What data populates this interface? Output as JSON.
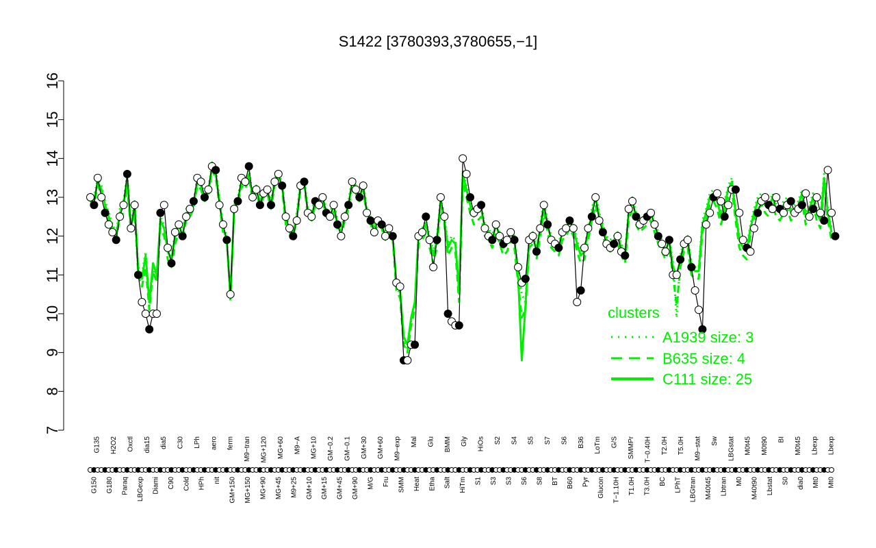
{
  "chart_data": {
    "type": "line",
    "title": "S1422 [3780393,3780655,−1]",
    "ylim": [
      7,
      16
    ],
    "yticks": [
      7,
      8,
      9,
      10,
      11,
      12,
      13,
      14,
      15,
      16
    ],
    "legend": {
      "title": "clusters",
      "position": "right",
      "entries": [
        "A1939 size: 3",
        "B635 size: 4",
        "C111 size: 25"
      ]
    },
    "x_labels_top": [
      "G135",
      "H2O2",
      "Oxctl",
      "dia15",
      "dia5",
      "C30",
      "LPh",
      "aero",
      "ferm",
      "M9−tran",
      "MG+120",
      "MG+60",
      "M9−A",
      "MG+10",
      "GM−0.2",
      "GM−0.1",
      "GM+30",
      "GM+60",
      "M9−exp",
      "Mal",
      "Glu",
      "BMM",
      "Gly",
      "HiOs",
      "S2",
      "S4",
      "S5",
      "S7",
      "S6",
      "B36",
      "LoTm",
      "G/S",
      "SMMPr",
      "T−0.40H",
      "T2.0H",
      "T5.0H",
      "M9−stat",
      "Sw",
      "LBGstat",
      "M0t45",
      "M0t90",
      "BI",
      "M0t45",
      "Lbexp",
      "Lbexp"
    ],
    "x_labels_bottom": [
      "G150",
      "G180",
      "Paraq",
      "LBGexp",
      "Diami",
      "C90",
      "Cold",
      "HPh",
      "nit",
      "GM+150",
      "MG+150",
      "MG+90",
      "MG+45",
      "M9+25",
      "GM+10",
      "GM+15",
      "GM+45",
      "GM+90",
      "M/G",
      "Fru",
      "SMM",
      "Heat",
      "Etha",
      "Salt",
      "HiTm",
      "S1",
      "S3",
      "S3",
      "S6",
      "S8",
      "BT",
      "B60",
      "Pyr",
      "Glucon",
      "T−1.10H",
      "T1.0H",
      "T3.0H",
      "BC",
      "LPhT",
      "LBGtran",
      "M40t45",
      "Lbtran",
      "M0",
      "M40t90",
      "Lbstat",
      "S0",
      "dia0",
      "Mt0",
      "Mt0"
    ],
    "series": [
      {
        "name": "C111 size: 25",
        "style": "solid",
        "values": [
          13.0,
          12.9,
          13.4,
          13.2,
          12.8,
          12.5,
          12.2,
          12.0,
          12.6,
          12.8,
          13.5,
          12.2,
          12.8,
          11.1,
          10.9,
          11.5,
          10.3,
          11.3,
          11.0,
          12.4,
          12.2,
          11.6,
          11.4,
          12.0,
          12.3,
          12.0,
          12.6,
          12.6,
          12.8,
          13.4,
          13.3,
          13.0,
          13.1,
          13.8,
          13.6,
          12.9,
          12.2,
          11.9,
          10.4,
          12.7,
          12.9,
          13.4,
          13.3,
          13.6,
          13.0,
          13.2,
          12.9,
          13.1,
          13.2,
          12.8,
          13.4,
          13.5,
          13.3,
          12.4,
          12.2,
          12.1,
          12.5,
          13.3,
          13.4,
          12.6,
          12.5,
          12.9,
          12.8,
          13.0,
          12.6,
          12.5,
          12.8,
          12.3,
          12.1,
          12.5,
          12.8,
          13.4,
          13.2,
          13.0,
          13.3,
          12.6,
          12.4,
          12.2,
          12.4,
          12.3,
          12.0,
          12.1,
          12.0,
          10.8,
          10.6,
          9.4,
          9.2,
          9.9,
          10.3,
          12.0,
          12.1,
          12.3,
          11.9,
          11.5,
          11.9,
          12.9,
          12.4,
          11.7,
          11.9,
          11.8,
          10.6,
          13.6,
          13.2,
          12.8,
          12.5,
          12.6,
          12.7,
          12.2,
          12.1,
          11.9,
          12.3,
          12.0,
          11.7,
          11.8,
          12.1,
          11.9,
          11.0,
          8.8,
          10.2,
          11.9,
          12.0,
          11.6,
          12.2,
          12.8,
          12.3,
          11.9,
          11.8,
          11.7,
          12.1,
          12.2,
          12.4,
          12.2,
          11.8,
          11.5,
          11.6,
          12.1,
          12.6,
          13.0,
          12.5,
          12.2,
          11.9,
          11.8,
          11.9,
          12.0,
          11.7,
          11.5,
          12.6,
          12.9,
          12.5,
          12.3,
          12.4,
          12.5,
          12.6,
          12.3,
          12.0,
          11.8,
          11.6,
          11.9,
          11.2,
          11.0,
          11.4,
          11.8,
          11.9,
          11.2,
          11.1,
          11.1,
          12.3,
          12.6,
          13.0,
          13.1,
          12.9,
          12.5,
          12.8,
          13.2,
          13.4,
          12.6,
          11.9,
          11.7,
          11.6,
          12.2,
          12.6,
          12.9,
          13.0,
          12.8,
          12.7,
          13.0,
          12.7,
          12.6,
          12.8,
          12.9,
          12.6,
          12.7,
          12.8,
          13.1,
          12.5,
          12.7,
          13.0,
          12.6,
          12.4,
          13.5,
          12.6,
          12.1
        ]
      },
      {
        "name": "B635 size: 4",
        "style": "dashed",
        "values": [
          12.9,
          12.8,
          13.3,
          13.1,
          12.7,
          12.3,
          12.0,
          11.9,
          12.5,
          12.6,
          13.3,
          12.1,
          12.6,
          11.0,
          10.7,
          11.2,
          10.1,
          11.1,
          10.8,
          12.2,
          12.0,
          11.4,
          11.2,
          11.8,
          12.1,
          11.9,
          12.4,
          12.5,
          12.7,
          13.3,
          13.2,
          12.9,
          13.0,
          13.7,
          13.5,
          12.8,
          12.1,
          11.8,
          10.5,
          12.6,
          12.8,
          13.3,
          13.2,
          13.5,
          12.9,
          13.1,
          12.8,
          13.0,
          13.1,
          12.7,
          13.3,
          13.4,
          13.2,
          12.3,
          12.1,
          12.0,
          12.4,
          13.2,
          13.3,
          12.5,
          12.4,
          12.8,
          12.7,
          12.9,
          12.5,
          12.4,
          12.7,
          12.2,
          12.0,
          12.4,
          12.7,
          13.3,
          13.1,
          12.9,
          13.2,
          12.5,
          12.3,
          12.1,
          12.3,
          12.2,
          11.9,
          12.0,
          11.9,
          10.6,
          10.4,
          9.2,
          9.0,
          9.7,
          10.1,
          11.8,
          11.9,
          12.1,
          11.7,
          11.3,
          11.7,
          12.8,
          12.3,
          11.5,
          11.7,
          11.6,
          10.3,
          13.4,
          13.0,
          12.6,
          12.3,
          12.4,
          12.5,
          12.0,
          11.9,
          11.7,
          12.1,
          11.8,
          11.5,
          11.6,
          11.9,
          11.7,
          10.8,
          9.9,
          10.1,
          11.7,
          11.8,
          11.4,
          12.0,
          12.6,
          12.1,
          11.7,
          11.6,
          11.5,
          11.9,
          12.0,
          12.2,
          12.0,
          11.6,
          11.3,
          11.4,
          11.9,
          12.4,
          12.8,
          12.3,
          12.0,
          11.7,
          11.6,
          11.7,
          11.8,
          11.5,
          11.3,
          12.4,
          12.7,
          12.3,
          12.1,
          12.2,
          12.3,
          12.4,
          12.1,
          11.8,
          11.6,
          11.4,
          11.7,
          11.0,
          10.2,
          11.2,
          11.6,
          11.7,
          11.0,
          10.9,
          10.9,
          12.1,
          12.4,
          12.8,
          12.9,
          12.7,
          12.3,
          12.6,
          13.0,
          13.2,
          12.4,
          11.7,
          11.5,
          11.4,
          12.0,
          12.4,
          12.7,
          12.8,
          12.6,
          12.5,
          12.8,
          12.5,
          12.4,
          12.6,
          12.7,
          12.4,
          12.5,
          12.6,
          12.9,
          12.3,
          12.5,
          12.8,
          12.4,
          12.2,
          13.3,
          12.4,
          11.9
        ]
      },
      {
        "name": "A1939 size: 3",
        "style": "dotted",
        "values": [
          13.1,
          13.0,
          13.5,
          13.3,
          12.9,
          12.6,
          12.3,
          12.1,
          12.7,
          12.9,
          13.6,
          12.3,
          12.9,
          11.2,
          11.0,
          11.6,
          10.2,
          11.2,
          10.9,
          12.5,
          12.3,
          11.7,
          11.5,
          12.1,
          12.4,
          12.1,
          12.7,
          12.7,
          12.9,
          13.5,
          13.4,
          13.1,
          13.2,
          13.9,
          13.7,
          13.0,
          12.3,
          12.0,
          10.3,
          12.8,
          13.0,
          13.5,
          13.4,
          13.7,
          13.1,
          13.3,
          13.0,
          13.2,
          13.3,
          12.9,
          13.5,
          13.6,
          13.4,
          12.5,
          12.3,
          12.2,
          12.6,
          13.4,
          13.5,
          12.7,
          12.6,
          13.0,
          12.9,
          13.1,
          12.7,
          12.6,
          12.9,
          12.4,
          12.2,
          12.6,
          12.9,
          13.5,
          13.3,
          13.1,
          13.4,
          12.7,
          12.5,
          12.3,
          12.5,
          12.4,
          12.1,
          12.2,
          12.1,
          10.7,
          10.5,
          9.3,
          9.1,
          9.8,
          10.2,
          12.1,
          12.2,
          12.4,
          12.0,
          11.6,
          12.0,
          13.0,
          12.5,
          11.8,
          12.0,
          11.9,
          10.5,
          13.7,
          13.3,
          12.9,
          12.6,
          12.7,
          12.8,
          12.3,
          12.2,
          12.0,
          12.4,
          12.1,
          11.8,
          11.9,
          12.2,
          12.0,
          11.1,
          10.5,
          10.3,
          12.0,
          12.1,
          11.7,
          12.3,
          12.9,
          12.4,
          12.0,
          11.9,
          11.8,
          12.2,
          12.3,
          12.5,
          12.3,
          11.9,
          11.6,
          11.7,
          12.2,
          12.7,
          13.1,
          12.6,
          12.3,
          12.0,
          11.9,
          12.0,
          12.1,
          11.8,
          11.6,
          12.7,
          13.0,
          12.6,
          12.4,
          12.5,
          12.6,
          12.7,
          12.4,
          12.1,
          11.9,
          11.7,
          12.0,
          11.3,
          9.9,
          11.5,
          11.9,
          12.0,
          11.3,
          11.2,
          11.2,
          12.4,
          12.7,
          13.1,
          13.2,
          13.0,
          12.6,
          12.9,
          13.3,
          13.5,
          12.7,
          12.0,
          11.8,
          11.7,
          12.3,
          12.7,
          13.0,
          13.1,
          12.9,
          12.8,
          13.1,
          12.8,
          12.7,
          12.9,
          13.0,
          12.7,
          12.8,
          12.9,
          13.2,
          12.6,
          12.8,
          13.1,
          12.7,
          12.5,
          13.6,
          12.7,
          12.2
        ]
      },
      {
        "name": "selected",
        "style": "solid-black",
        "values": [
          13.0,
          12.8,
          13.5,
          13.0,
          12.6,
          12.3,
          12.1,
          11.9,
          12.5,
          12.8,
          13.6,
          12.2,
          12.8,
          11.0,
          10.3,
          10.0,
          9.6,
          10.0,
          10.0,
          12.6,
          12.8,
          11.7,
          11.3,
          12.1,
          12.3,
          12.0,
          12.5,
          12.7,
          12.9,
          13.5,
          13.4,
          13.0,
          13.2,
          13.8,
          13.7,
          12.8,
          12.3,
          11.9,
          10.5,
          12.7,
          12.9,
          13.5,
          13.4,
          13.8,
          13.0,
          13.2,
          12.8,
          13.1,
          13.2,
          12.8,
          13.4,
          13.6,
          13.3,
          12.5,
          12.2,
          12.0,
          12.4,
          13.3,
          13.4,
          12.6,
          12.5,
          12.9,
          12.8,
          13.0,
          12.6,
          12.5,
          12.8,
          12.3,
          12.0,
          12.5,
          12.8,
          13.4,
          13.2,
          13.0,
          13.3,
          12.6,
          12.4,
          12.1,
          12.4,
          12.3,
          12.0,
          12.2,
          12.0,
          10.8,
          10.7,
          8.8,
          8.8,
          9.2,
          9.2,
          12.0,
          12.1,
          12.5,
          11.9,
          11.2,
          11.9,
          13.0,
          12.5,
          10.0,
          9.8,
          9.7,
          9.7,
          14.0,
          13.6,
          13.0,
          12.6,
          12.7,
          12.8,
          12.2,
          12.0,
          11.9,
          12.3,
          12.0,
          11.8,
          11.9,
          12.1,
          11.9,
          11.2,
          10.8,
          10.9,
          11.9,
          12.0,
          11.6,
          12.2,
          12.8,
          12.3,
          11.9,
          11.8,
          11.7,
          12.1,
          12.2,
          12.4,
          12.2,
          10.3,
          10.6,
          11.7,
          12.2,
          12.5,
          13.0,
          12.4,
          12.1,
          11.8,
          11.7,
          11.8,
          12.0,
          11.6,
          11.5,
          12.7,
          12.9,
          12.5,
          12.3,
          12.4,
          12.5,
          12.6,
          12.3,
          12.0,
          11.8,
          11.6,
          11.9,
          11.0,
          11.0,
          11.4,
          11.8,
          11.9,
          11.2,
          10.6,
          10.1,
          9.6,
          12.3,
          12.6,
          13.0,
          13.1,
          12.9,
          12.5,
          12.8,
          13.2,
          13.2,
          12.6,
          11.9,
          11.7,
          11.6,
          12.2,
          12.6,
          12.9,
          13.0,
          12.8,
          12.7,
          13.0,
          12.7,
          12.6,
          12.8,
          12.9,
          12.6,
          12.7,
          12.8,
          13.1,
          12.5,
          12.7,
          13.0,
          12.6,
          12.4,
          13.7,
          12.6,
          12.0
        ]
      }
    ]
  }
}
